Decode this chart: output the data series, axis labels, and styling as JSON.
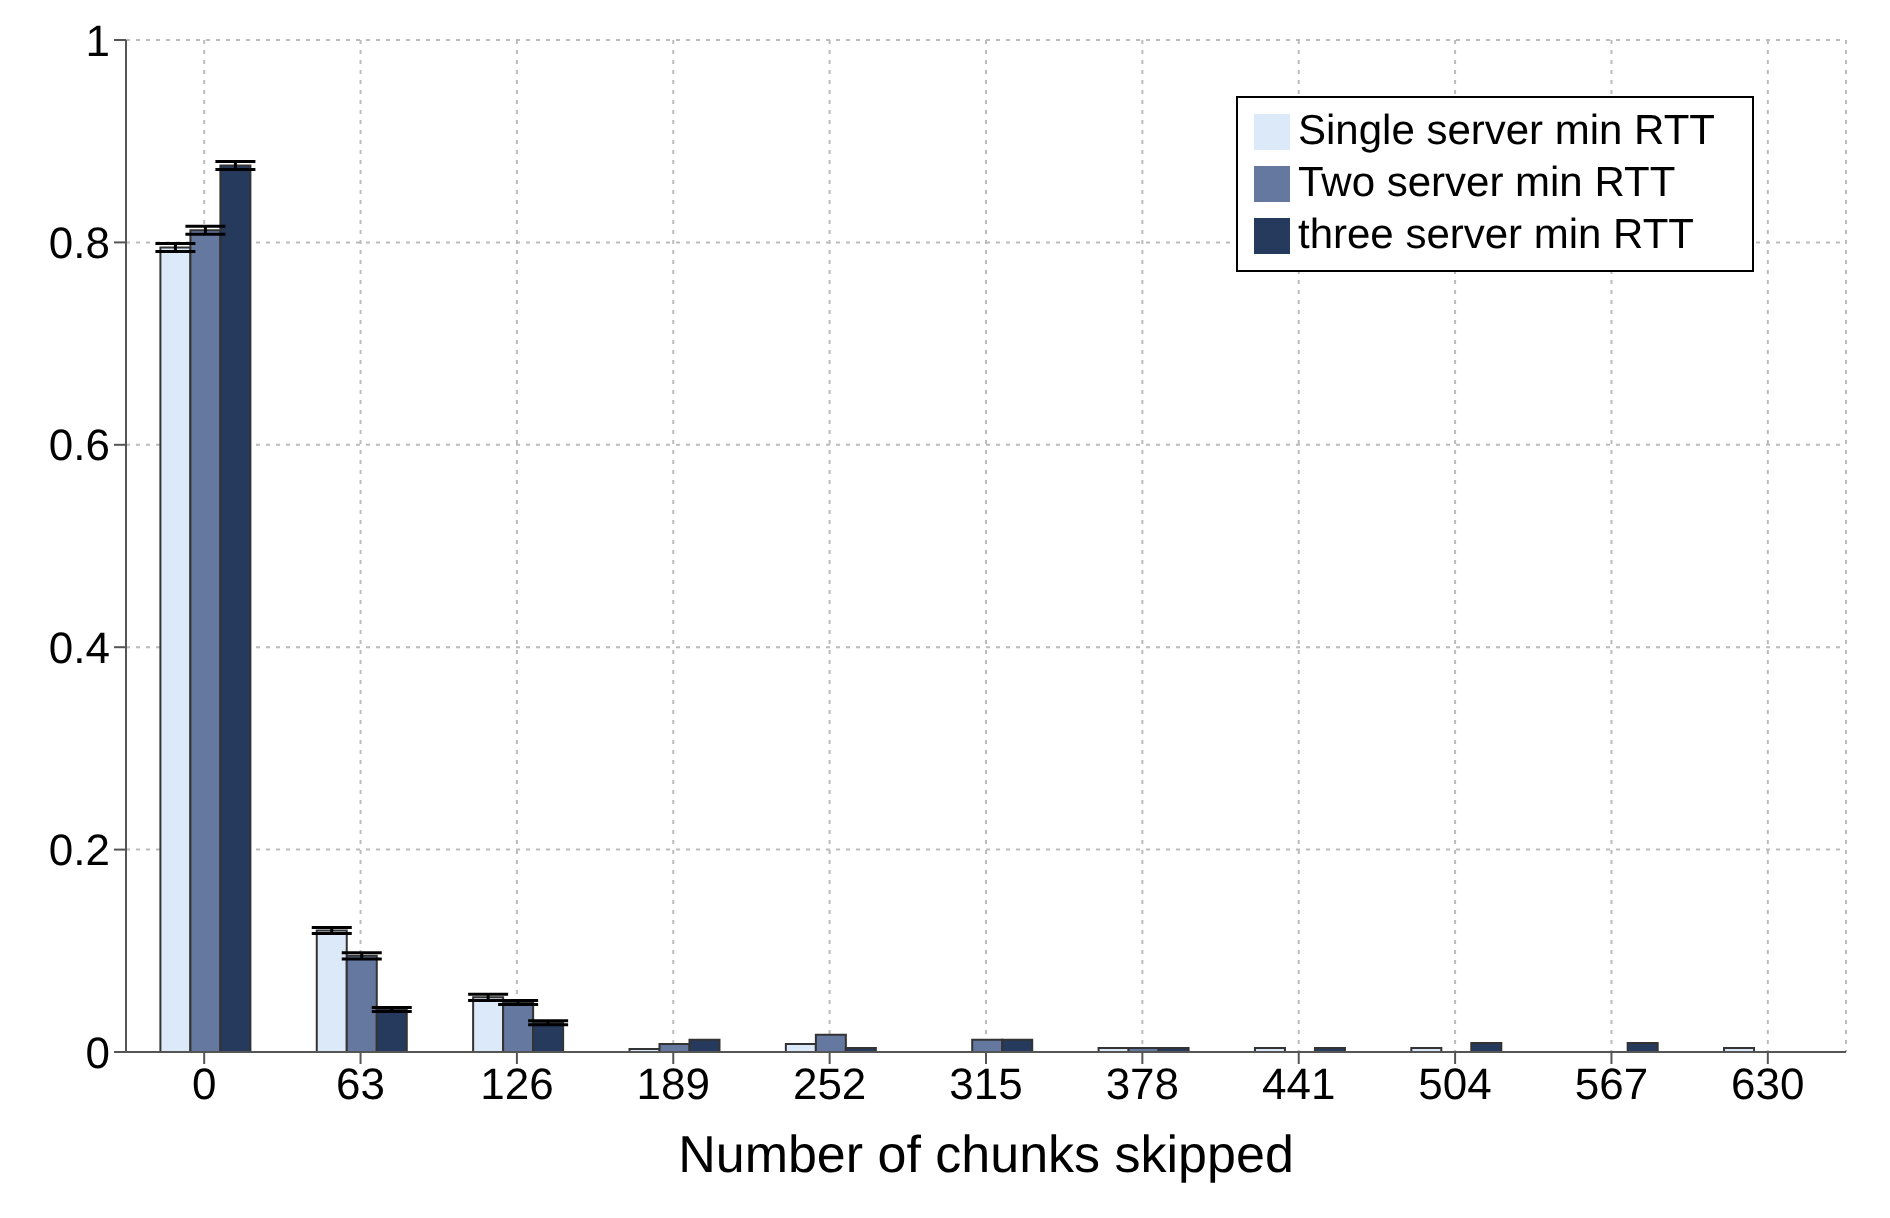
{
  "chart_data": {
    "type": "bar",
    "xlabel": "Number of chunks skipped",
    "categories": [
      "0",
      "63",
      "126",
      "189",
      "252",
      "315",
      "378",
      "441",
      "504",
      "567",
      "630"
    ],
    "series": [
      {
        "name": "Single server min RTT",
        "color": "#dce9f8",
        "values": [
          0.795,
          0.12,
          0.054,
          0.003,
          0.008,
          0,
          0.004,
          0.004,
          0.004,
          0,
          0.004
        ],
        "errors": [
          0.004,
          0.003,
          0.003,
          null,
          null,
          null,
          null,
          null,
          null,
          null,
          null
        ]
      },
      {
        "name": "Two server min RTT",
        "color": "#6478a0",
        "values": [
          0.812,
          0.095,
          0.049,
          0.008,
          0.017,
          0.012,
          0.004,
          0,
          0,
          0,
          0
        ],
        "errors": [
          0.004,
          0.003,
          0.002,
          null,
          null,
          null,
          null,
          null,
          null,
          null,
          null
        ]
      },
      {
        "name": "three server min RTT",
        "color": "#263a5e",
        "values": [
          0.876,
          0.042,
          0.029,
          0.012,
          0.004,
          0.012,
          0.004,
          0.004,
          0.009,
          0.009,
          0
        ],
        "errors": [
          0.004,
          0.002,
          0.002,
          null,
          null,
          null,
          null,
          null,
          null,
          null,
          null
        ]
      }
    ],
    "ylim": [
      0,
      1
    ],
    "yticks": [
      0,
      0.2,
      0.4,
      0.6,
      0.8,
      1
    ],
    "grid": true,
    "legend": "top right"
  }
}
